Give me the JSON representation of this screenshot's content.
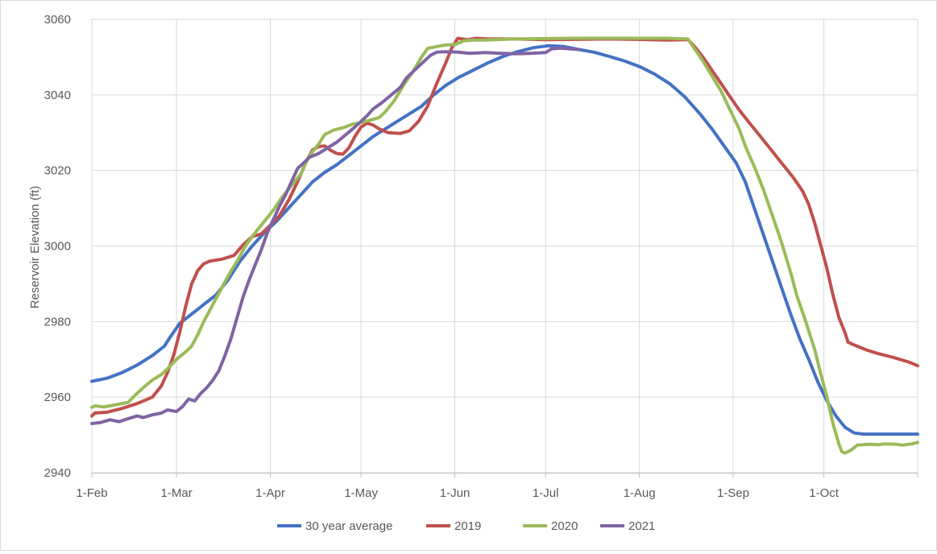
{
  "chart_data": {
    "type": "line",
    "title": "",
    "xlabel": "",
    "ylabel": "Reservoir Elevation (ft)",
    "ylim": [
      2940,
      3060
    ],
    "yticks": [
      "2940",
      "2960",
      "2980",
      "3000",
      "3020",
      "3040",
      "3060"
    ],
    "xlim": [
      0,
      273
    ],
    "xticks": [
      {
        "day": 0,
        "label": "1-Feb"
      },
      {
        "day": 28,
        "label": "1-Mar"
      },
      {
        "day": 59,
        "label": "1-Apr"
      },
      {
        "day": 89,
        "label": "1-May"
      },
      {
        "day": 120,
        "label": "1-Jun"
      },
      {
        "day": 150,
        "label": "1-Jul"
      },
      {
        "day": 181,
        "label": "1-Aug"
      },
      {
        "day": 212,
        "label": "1-Sep"
      },
      {
        "day": 242,
        "label": "1-Oct"
      }
    ],
    "grid": "vertical and horizontal",
    "legend_position": "bottom",
    "series": [
      {
        "name": "30 year average",
        "color": "#4472C4",
        "points": [
          [
            0,
            2964.2
          ],
          [
            5,
            2965
          ],
          [
            10,
            2966.5
          ],
          [
            15,
            2968.5
          ],
          [
            20,
            2971
          ],
          [
            24,
            2973.5
          ],
          [
            26,
            2976
          ],
          [
            29,
            2979.5
          ],
          [
            33,
            2982
          ],
          [
            37,
            2984.5
          ],
          [
            41,
            2987
          ],
          [
            45,
            2991
          ],
          [
            49,
            2996
          ],
          [
            53,
            3000
          ],
          [
            57,
            3003.5
          ],
          [
            61,
            3006.5
          ],
          [
            65,
            3010
          ],
          [
            69,
            3013.5
          ],
          [
            73,
            3017
          ],
          [
            77,
            3019.5
          ],
          [
            81,
            3021.5
          ],
          [
            85,
            3024
          ],
          [
            89,
            3026.5
          ],
          [
            93,
            3029
          ],
          [
            97,
            3031
          ],
          [
            101,
            3033
          ],
          [
            105,
            3035
          ],
          [
            109,
            3037
          ],
          [
            113,
            3040
          ],
          [
            117,
            3042.5
          ],
          [
            121,
            3044.5
          ],
          [
            126,
            3046.5
          ],
          [
            131,
            3048.5
          ],
          [
            136,
            3050.2
          ],
          [
            141,
            3051.5
          ],
          [
            146,
            3052.5
          ],
          [
            151,
            3053
          ],
          [
            156,
            3052.8
          ],
          [
            161,
            3052
          ],
          [
            166,
            3051.3
          ],
          [
            171,
            3050.2
          ],
          [
            176,
            3049
          ],
          [
            181,
            3047.5
          ],
          [
            186,
            3045.5
          ],
          [
            191,
            3043
          ],
          [
            196,
            3039.5
          ],
          [
            201,
            3035
          ],
          [
            205,
            3031
          ],
          [
            209,
            3026.5
          ],
          [
            213,
            3022
          ],
          [
            216,
            3017
          ],
          [
            219,
            3010
          ],
          [
            222,
            3003
          ],
          [
            225,
            2996
          ],
          [
            228,
            2989
          ],
          [
            231,
            2982
          ],
          [
            234,
            2975.5
          ],
          [
            237,
            2970
          ],
          [
            240,
            2964
          ],
          [
            243,
            2959
          ],
          [
            246,
            2955
          ],
          [
            249,
            2952
          ],
          [
            252,
            2950.5
          ],
          [
            255,
            2950.2
          ],
          [
            260,
            2950.2
          ],
          [
            273,
            2950.2
          ]
        ]
      },
      {
        "name": "2019",
        "color": "#C0504D",
        "points": [
          [
            0,
            2955
          ],
          [
            1,
            2955.8
          ],
          [
            5,
            2956
          ],
          [
            10,
            2957
          ],
          [
            15,
            2958.3
          ],
          [
            20,
            2960
          ],
          [
            23,
            2963
          ],
          [
            25,
            2966.5
          ],
          [
            27,
            2971
          ],
          [
            29,
            2977
          ],
          [
            31,
            2984
          ],
          [
            33,
            2990
          ],
          [
            35,
            2993.5
          ],
          [
            37,
            2995.3
          ],
          [
            39,
            2996
          ],
          [
            43,
            2996.5
          ],
          [
            47,
            2997.5
          ],
          [
            50,
            3000.3
          ],
          [
            53,
            3002.5
          ],
          [
            56,
            3003.2
          ],
          [
            59,
            3005.5
          ],
          [
            62,
            3008
          ],
          [
            65,
            3012
          ],
          [
            68,
            3017
          ],
          [
            71,
            3022.5
          ],
          [
            73,
            3025.5
          ],
          [
            75,
            3026.3
          ],
          [
            77,
            3026.5
          ],
          [
            79,
            3025.3
          ],
          [
            81,
            3024.5
          ],
          [
            83,
            3024.3
          ],
          [
            85,
            3026
          ],
          [
            87,
            3029
          ],
          [
            89,
            3031.5
          ],
          [
            91,
            3032.5
          ],
          [
            93,
            3032
          ],
          [
            95,
            3031
          ],
          [
            98,
            3030
          ],
          [
            102,
            3029.8
          ],
          [
            105,
            3030.5
          ],
          [
            108,
            3033
          ],
          [
            111,
            3037
          ],
          [
            114,
            3043
          ],
          [
            117,
            3048.5
          ],
          [
            119,
            3052.5
          ],
          [
            121,
            3055
          ],
          [
            124,
            3054.6
          ],
          [
            127,
            3055
          ],
          [
            131,
            3054.8
          ],
          [
            140,
            3054.8
          ],
          [
            150,
            3054.6
          ],
          [
            160,
            3054.7
          ],
          [
            170,
            3054.8
          ],
          [
            180,
            3054.7
          ],
          [
            190,
            3054.5
          ],
          [
            197,
            3054.6
          ],
          [
            199,
            3053
          ],
          [
            202,
            3050
          ],
          [
            205,
            3046.5
          ],
          [
            208,
            3043
          ],
          [
            211,
            3039.5
          ],
          [
            214,
            3036
          ],
          [
            217,
            3033
          ],
          [
            220,
            3030
          ],
          [
            223,
            3027
          ],
          [
            226,
            3024
          ],
          [
            229,
            3021
          ],
          [
            232,
            3018
          ],
          [
            235,
            3014.5
          ],
          [
            237,
            3011
          ],
          [
            239,
            3006
          ],
          [
            241,
            3000
          ],
          [
            243,
            2994
          ],
          [
            245,
            2987
          ],
          [
            247,
            2981
          ],
          [
            249,
            2977
          ],
          [
            250,
            2974.5
          ],
          [
            252,
            2973.8
          ],
          [
            256,
            2972.5
          ],
          [
            260,
            2971.5
          ],
          [
            265,
            2970.5
          ],
          [
            270,
            2969.3
          ],
          [
            273,
            2968.3
          ]
        ]
      },
      {
        "name": "2020",
        "color": "#9BBB59",
        "points": [
          [
            0,
            2957.3
          ],
          [
            1,
            2957.7
          ],
          [
            4,
            2957.4
          ],
          [
            8,
            2958
          ],
          [
            12,
            2958.6
          ],
          [
            14,
            2960.3
          ],
          [
            17,
            2962.5
          ],
          [
            20,
            2964.5
          ],
          [
            23,
            2966
          ],
          [
            25,
            2967.5
          ],
          [
            28,
            2970
          ],
          [
            31,
            2972
          ],
          [
            33,
            2973.5
          ],
          [
            35,
            2976.5
          ],
          [
            37,
            2980
          ],
          [
            39,
            2983
          ],
          [
            42,
            2987.5
          ],
          [
            45,
            2992
          ],
          [
            48,
            2996
          ],
          [
            51,
            3000.3
          ],
          [
            54,
            3003.5
          ],
          [
            57,
            3006.5
          ],
          [
            60,
            3009.5
          ],
          [
            63,
            3013
          ],
          [
            66,
            3016
          ],
          [
            69,
            3019
          ],
          [
            71,
            3022.5
          ],
          [
            73,
            3025
          ],
          [
            75,
            3027
          ],
          [
            77,
            3029.5
          ],
          [
            80,
            3030.7
          ],
          [
            83,
            3031.3
          ],
          [
            86,
            3032.2
          ],
          [
            89,
            3032.7
          ],
          [
            92,
            3033.3
          ],
          [
            95,
            3034
          ],
          [
            97,
            3035.5
          ],
          [
            100,
            3038.5
          ],
          [
            103,
            3042.5
          ],
          [
            106,
            3046
          ],
          [
            109,
            3050
          ],
          [
            111,
            3052.3
          ],
          [
            114,
            3052.8
          ],
          [
            117,
            3053.2
          ],
          [
            120,
            3053.3
          ],
          [
            123,
            3054.3
          ],
          [
            126,
            3054.5
          ],
          [
            130,
            3054.5
          ],
          [
            140,
            3054.8
          ],
          [
            150,
            3054.9
          ],
          [
            160,
            3055
          ],
          [
            170,
            3055
          ],
          [
            180,
            3055
          ],
          [
            190,
            3055
          ],
          [
            197,
            3054.8
          ],
          [
            199,
            3052.5
          ],
          [
            202,
            3049
          ],
          [
            205,
            3045
          ],
          [
            208,
            3041
          ],
          [
            211,
            3036
          ],
          [
            214,
            3031
          ],
          [
            216,
            3026.5
          ],
          [
            219,
            3021
          ],
          [
            222,
            3015
          ],
          [
            225,
            3008
          ],
          [
            228,
            3001
          ],
          [
            231,
            2993
          ],
          [
            233,
            2987
          ],
          [
            236,
            2980
          ],
          [
            239,
            2972.5
          ],
          [
            241,
            2966
          ],
          [
            243,
            2960
          ],
          [
            245,
            2953
          ],
          [
            247,
            2947.5
          ],
          [
            248,
            2945.5
          ],
          [
            249,
            2945.2
          ],
          [
            251,
            2946
          ],
          [
            253,
            2947.3
          ],
          [
            257,
            2947.5
          ],
          [
            260,
            2947.4
          ],
          [
            262,
            2947.6
          ],
          [
            266,
            2947.5
          ],
          [
            268,
            2947.3
          ],
          [
            271,
            2947.6
          ],
          [
            273,
            2948
          ]
        ]
      },
      {
        "name": "2021",
        "color": "#8064A2",
        "points": [
          [
            0,
            2953
          ],
          [
            3,
            2953.3
          ],
          [
            6,
            2954
          ],
          [
            9,
            2953.5
          ],
          [
            12,
            2954.3
          ],
          [
            15,
            2955
          ],
          [
            17,
            2954.6
          ],
          [
            20,
            2955.3
          ],
          [
            23,
            2955.8
          ],
          [
            25,
            2956.6
          ],
          [
            28,
            2956.2
          ],
          [
            30,
            2957.5
          ],
          [
            32,
            2959.5
          ],
          [
            34,
            2959
          ],
          [
            36,
            2961
          ],
          [
            38,
            2962.5
          ],
          [
            40,
            2964.5
          ],
          [
            42,
            2967
          ],
          [
            44,
            2971
          ],
          [
            46,
            2975.5
          ],
          [
            48,
            2981
          ],
          [
            50,
            2986.5
          ],
          [
            52,
            2991
          ],
          [
            54,
            2995
          ],
          [
            56,
            2999
          ],
          [
            58,
            3003.5
          ],
          [
            60,
            3007
          ],
          [
            62,
            3010.5
          ],
          [
            64,
            3013.5
          ],
          [
            66,
            3017
          ],
          [
            68,
            3020.5
          ],
          [
            70,
            3022
          ],
          [
            72,
            3023.5
          ],
          [
            75,
            3024.5
          ],
          [
            78,
            3026
          ],
          [
            81,
            3027.5
          ],
          [
            84,
            3029.5
          ],
          [
            87,
            3031.5
          ],
          [
            89,
            3033
          ],
          [
            91,
            3034.5
          ],
          [
            93,
            3036.3
          ],
          [
            96,
            3038
          ],
          [
            99,
            3040
          ],
          [
            102,
            3042
          ],
          [
            104,
            3044.5
          ],
          [
            106,
            3046
          ],
          [
            108,
            3047.5
          ],
          [
            110,
            3049
          ],
          [
            112,
            3050.5
          ],
          [
            114,
            3051.3
          ],
          [
            117,
            3051.4
          ],
          [
            121,
            3051.3
          ],
          [
            125,
            3051
          ],
          [
            130,
            3051.2
          ],
          [
            135,
            3051
          ],
          [
            140,
            3050.9
          ],
          [
            145,
            3051
          ],
          [
            150,
            3051.2
          ],
          [
            152,
            3052.2
          ],
          [
            155,
            3052.4
          ],
          [
            158,
            3052.2
          ],
          [
            161,
            3052
          ]
        ]
      }
    ]
  }
}
